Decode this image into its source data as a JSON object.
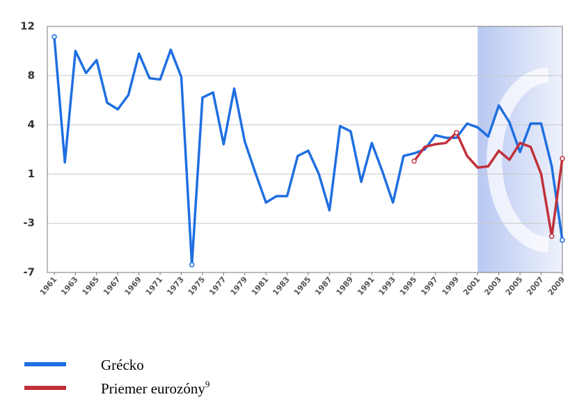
{
  "chart_data": {
    "type": "line",
    "x": [
      1961,
      1962,
      1963,
      1964,
      1965,
      1966,
      1967,
      1968,
      1969,
      1970,
      1971,
      1972,
      1973,
      1974,
      1975,
      1976,
      1977,
      1978,
      1979,
      1980,
      1981,
      1982,
      1983,
      1984,
      1985,
      1986,
      1987,
      1988,
      1989,
      1990,
      1991,
      1992,
      1993,
      1994,
      1995,
      1996,
      1997,
      1998,
      1999,
      2000,
      2001,
      2002,
      2003,
      2004,
      2005,
      2006,
      2007,
      2008,
      2009
    ],
    "series": [
      {
        "name": "Grécko",
        "color": "#1f6fe0",
        "values": [
          11.2,
          1.5,
          10.1,
          8.4,
          9.4,
          6.1,
          5.6,
          6.7,
          9.9,
          8.0,
          7.9,
          10.2,
          8.1,
          -6.4,
          6.5,
          6.9,
          2.9,
          7.2,
          3.1,
          0.7,
          -1.6,
          -1.1,
          -1.1,
          2.0,
          2.4,
          0.6,
          -2.2,
          4.3,
          3.9,
          0.0,
          3.0,
          0.8,
          -1.6,
          2.0,
          2.2,
          2.5,
          3.6,
          3.4,
          3.4,
          4.5,
          4.2,
          3.5,
          5.9,
          4.6,
          2.3,
          4.5,
          4.5,
          1.2,
          -4.5
        ],
        "markers": [
          1961,
          1974,
          2009
        ]
      },
      {
        "name": "Priemer eurozóny",
        "color": "#c0303a",
        "values": [
          null,
          null,
          null,
          null,
          null,
          null,
          null,
          null,
          null,
          null,
          null,
          null,
          null,
          null,
          null,
          null,
          null,
          null,
          null,
          null,
          null,
          null,
          null,
          null,
          null,
          null,
          null,
          null,
          null,
          null,
          null,
          null,
          null,
          null,
          1.6,
          2.7,
          2.9,
          3.0,
          3.8,
          2.0,
          1.1,
          1.2,
          2.4,
          1.7,
          3.0,
          2.7,
          0.6,
          -4.2,
          1.8
        ],
        "markers": [
          1995,
          1999,
          2008,
          2009
        ]
      }
    ],
    "footnote_mark": "9",
    "xlim": [
      1961,
      2009
    ],
    "xticks": [
      1961,
      1963,
      1965,
      1967,
      1969,
      1971,
      1973,
      1975,
      1977,
      1979,
      1981,
      1983,
      1985,
      1987,
      1989,
      1991,
      1993,
      1995,
      1997,
      1999,
      2001,
      2003,
      2005,
      2007,
      2009
    ],
    "ylim": [
      -7,
      12
    ],
    "yticks": [
      {
        "value": -7,
        "label": "-7"
      },
      {
        "value": -3.2,
        "label": "-3"
      },
      {
        "value": 0.6,
        "label": "1"
      },
      {
        "value": 4.4,
        "label": "4"
      },
      {
        "value": 8.2,
        "label": "8"
      },
      {
        "value": 12,
        "label": "12"
      }
    ],
    "grid": true,
    "shaded_span": [
      2001,
      2009
    ]
  }
}
